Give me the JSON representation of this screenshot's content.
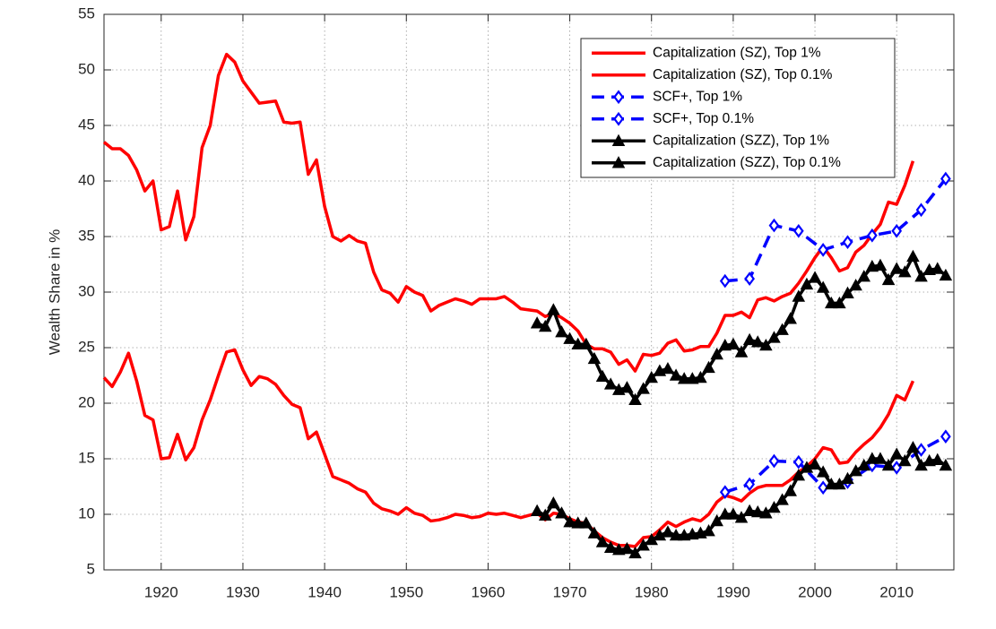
{
  "chart_data": {
    "type": "line",
    "ylabel": "Wealth Share in %",
    "xlim": [
      1913,
      2017
    ],
    "ylim": [
      5,
      55
    ],
    "xticks": [
      1920,
      1930,
      1940,
      1950,
      1960,
      1970,
      1980,
      1990,
      2000,
      2010
    ],
    "yticks": [
      5,
      10,
      15,
      20,
      25,
      30,
      35,
      40,
      45,
      50,
      55
    ],
    "grid": true,
    "legend": "upper right",
    "series": [
      {
        "name": "Capitalization (SZ), Top 1%",
        "color": "#ff0000",
        "marker": "none",
        "dash": false,
        "x": [
          1913,
          1914,
          1915,
          1916,
          1917,
          1918,
          1919,
          1920,
          1921,
          1922,
          1923,
          1924,
          1925,
          1926,
          1927,
          1928,
          1929,
          1930,
          1931,
          1932,
          1933,
          1934,
          1935,
          1936,
          1937,
          1938,
          1939,
          1940,
          1941,
          1942,
          1943,
          1944,
          1945,
          1946,
          1947,
          1948,
          1949,
          1950,
          1951,
          1952,
          1953,
          1954,
          1955,
          1956,
          1957,
          1958,
          1959,
          1960,
          1961,
          1962,
          1963,
          1964,
          1965,
          1966,
          1967,
          1968,
          1969,
          1970,
          1971,
          1972,
          1973,
          1974,
          1975,
          1976,
          1977,
          1978,
          1979,
          1980,
          1981,
          1982,
          1983,
          1984,
          1985,
          1986,
          1987,
          1988,
          1989,
          1990,
          1991,
          1992,
          1993,
          1994,
          1995,
          1996,
          1997,
          1998,
          1999,
          2000,
          2001,
          2002,
          2003,
          2004,
          2005,
          2006,
          2007,
          2008,
          2009,
          2010,
          2011,
          2012
        ],
        "values": [
          43.5,
          42.9,
          42.9,
          42.3,
          41.0,
          39.1,
          40.0,
          35.6,
          35.9,
          39.1,
          34.7,
          36.8,
          43.0,
          45.0,
          49.5,
          51.4,
          50.7,
          49.0,
          48.0,
          47.0,
          47.1,
          47.2,
          45.3,
          45.2,
          45.3,
          40.6,
          41.9,
          37.7,
          35.0,
          34.6,
          35.1,
          34.6,
          34.4,
          31.8,
          30.2,
          29.9,
          29.1,
          30.5,
          30.0,
          29.7,
          28.3,
          28.8,
          29.1,
          29.4,
          29.2,
          28.9,
          29.4,
          29.4,
          29.4,
          29.6,
          29.1,
          28.5,
          28.4,
          28.3,
          27.8,
          28.1,
          27.7,
          27.2,
          26.5,
          25.3,
          24.9,
          24.9,
          24.6,
          23.5,
          23.9,
          22.9,
          24.4,
          24.3,
          24.5,
          25.4,
          25.7,
          24.7,
          24.8,
          25.1,
          25.1,
          26.3,
          27.9,
          27.9,
          28.2,
          27.7,
          29.3,
          29.5,
          29.2,
          29.6,
          29.9,
          30.8,
          31.9,
          33.1,
          34.1,
          33.1,
          31.9,
          32.2,
          33.6,
          34.2,
          35.2,
          36.1,
          38.1,
          37.9,
          39.6,
          41.8
        ]
      },
      {
        "name": "Capitalization (SZ), Top 0.1%",
        "color": "#ff0000",
        "marker": "none",
        "dash": false,
        "x": [
          1913,
          1914,
          1915,
          1916,
          1917,
          1918,
          1919,
          1920,
          1921,
          1922,
          1923,
          1924,
          1925,
          1926,
          1927,
          1928,
          1929,
          1930,
          1931,
          1932,
          1933,
          1934,
          1935,
          1936,
          1937,
          1938,
          1939,
          1940,
          1941,
          1942,
          1943,
          1944,
          1945,
          1946,
          1947,
          1948,
          1949,
          1950,
          1951,
          1952,
          1953,
          1954,
          1955,
          1956,
          1957,
          1958,
          1959,
          1960,
          1961,
          1962,
          1963,
          1964,
          1965,
          1966,
          1967,
          1968,
          1969,
          1970,
          1971,
          1972,
          1973,
          1974,
          1975,
          1976,
          1977,
          1978,
          1979,
          1980,
          1981,
          1982,
          1983,
          1984,
          1985,
          1986,
          1987,
          1988,
          1989,
          1990,
          1991,
          1992,
          1993,
          1994,
          1995,
          1996,
          1997,
          1998,
          1999,
          2000,
          2001,
          2002,
          2003,
          2004,
          2005,
          2006,
          2007,
          2008,
          2009,
          2010,
          2011,
          2012
        ],
        "values": [
          22.3,
          21.5,
          22.8,
          24.5,
          22.0,
          18.9,
          18.5,
          15.0,
          15.1,
          17.2,
          14.9,
          16.0,
          18.5,
          20.3,
          22.5,
          24.6,
          24.8,
          23.0,
          21.6,
          22.4,
          22.2,
          21.7,
          20.7,
          19.9,
          19.6,
          16.8,
          17.4,
          15.4,
          13.4,
          13.1,
          12.8,
          12.3,
          12.0,
          11.0,
          10.5,
          10.3,
          10.0,
          10.6,
          10.1,
          9.9,
          9.4,
          9.5,
          9.7,
          10.0,
          9.9,
          9.7,
          9.8,
          10.1,
          10.0,
          10.1,
          9.9,
          9.7,
          9.9,
          10.1,
          9.5,
          10.1,
          10.0,
          9.6,
          9.3,
          9.2,
          8.5,
          7.9,
          7.5,
          7.2,
          7.2,
          7.1,
          7.9,
          8.0,
          8.6,
          9.3,
          8.9,
          9.3,
          9.6,
          9.4,
          10.0,
          11.1,
          11.7,
          11.5,
          11.2,
          11.9,
          12.4,
          12.6,
          12.6,
          12.6,
          13.1,
          13.8,
          14.3,
          15.0,
          16.0,
          15.8,
          14.6,
          14.7,
          15.6,
          16.3,
          16.9,
          17.8,
          19.0,
          20.7,
          20.3,
          22.0
        ]
      },
      {
        "name": "SCF+, Top 1%",
        "color": "#0000ff",
        "marker": "diamond",
        "dash": true,
        "x": [
          1989,
          1992,
          1995,
          1998,
          2001,
          2004,
          2007,
          2010,
          2013,
          2016
        ],
        "values": [
          31.0,
          31.2,
          36.0,
          35.5,
          33.8,
          34.5,
          35.1,
          35.5,
          37.4,
          40.2
        ]
      },
      {
        "name": "SCF+, Top 0.1%",
        "color": "#0000ff",
        "marker": "diamond",
        "dash": true,
        "x": [
          1989,
          1992,
          1995,
          1998,
          2001,
          2004,
          2007,
          2010,
          2013,
          2016
        ],
        "values": [
          12.0,
          12.7,
          14.8,
          14.7,
          12.4,
          12.9,
          14.4,
          14.2,
          15.8,
          17.0
        ]
      },
      {
        "name": "Capitalization (SZZ), Top 1%",
        "color": "#000000",
        "marker": "triangle",
        "dash": false,
        "x": [
          1966,
          1967,
          1968,
          1969,
          1970,
          1971,
          1972,
          1973,
          1974,
          1975,
          1976,
          1977,
          1978,
          1979,
          1980,
          1981,
          1982,
          1983,
          1984,
          1985,
          1986,
          1987,
          1988,
          1989,
          1990,
          1991,
          1992,
          1993,
          1994,
          1995,
          1996,
          1997,
          1998,
          1999,
          2000,
          2001,
          2002,
          2003,
          2004,
          2005,
          2006,
          2007,
          2008,
          2009,
          2010,
          2011,
          2012,
          2013,
          2014,
          2015,
          2016
        ],
        "values": [
          27.2,
          26.9,
          28.4,
          26.4,
          25.8,
          25.3,
          25.3,
          24.0,
          22.4,
          21.7,
          21.2,
          21.4,
          20.3,
          21.3,
          22.3,
          22.9,
          23.1,
          22.5,
          22.2,
          22.2,
          22.3,
          23.2,
          24.4,
          25.2,
          25.3,
          24.6,
          25.7,
          25.5,
          25.2,
          25.9,
          26.6,
          27.6,
          29.6,
          30.7,
          31.3,
          30.4,
          29.0,
          29.0,
          29.9,
          30.6,
          31.4,
          32.3,
          32.4,
          31.1,
          32.1,
          31.8,
          33.2,
          31.4,
          32.0,
          32.1,
          31.5
        ]
      },
      {
        "name": "Capitalization (SZZ), Top 0.1%",
        "color": "#000000",
        "marker": "triangle",
        "dash": false,
        "x": [
          1966,
          1967,
          1968,
          1969,
          1970,
          1971,
          1972,
          1973,
          1974,
          1975,
          1976,
          1977,
          1978,
          1979,
          1980,
          1981,
          1982,
          1983,
          1984,
          1985,
          1986,
          1987,
          1988,
          1989,
          1990,
          1991,
          1992,
          1993,
          1994,
          1995,
          1996,
          1997,
          1998,
          1999,
          2000,
          2001,
          2002,
          2003,
          2004,
          2005,
          2006,
          2007,
          2008,
          2009,
          2010,
          2011,
          2012,
          2013,
          2014,
          2015,
          2016
        ],
        "values": [
          10.3,
          9.9,
          11.0,
          10.1,
          9.3,
          9.2,
          9.2,
          8.3,
          7.5,
          7.0,
          6.8,
          6.9,
          6.5,
          7.2,
          7.7,
          8.1,
          8.4,
          8.1,
          8.1,
          8.2,
          8.3,
          8.5,
          9.4,
          10.0,
          10.0,
          9.7,
          10.3,
          10.2,
          10.1,
          10.6,
          11.3,
          12.1,
          13.5,
          14.2,
          14.5,
          13.8,
          12.7,
          12.7,
          13.2,
          13.9,
          14.4,
          15.0,
          15.0,
          14.4,
          15.4,
          14.8,
          16.0,
          14.4,
          14.8,
          14.9,
          14.4
        ]
      }
    ]
  }
}
